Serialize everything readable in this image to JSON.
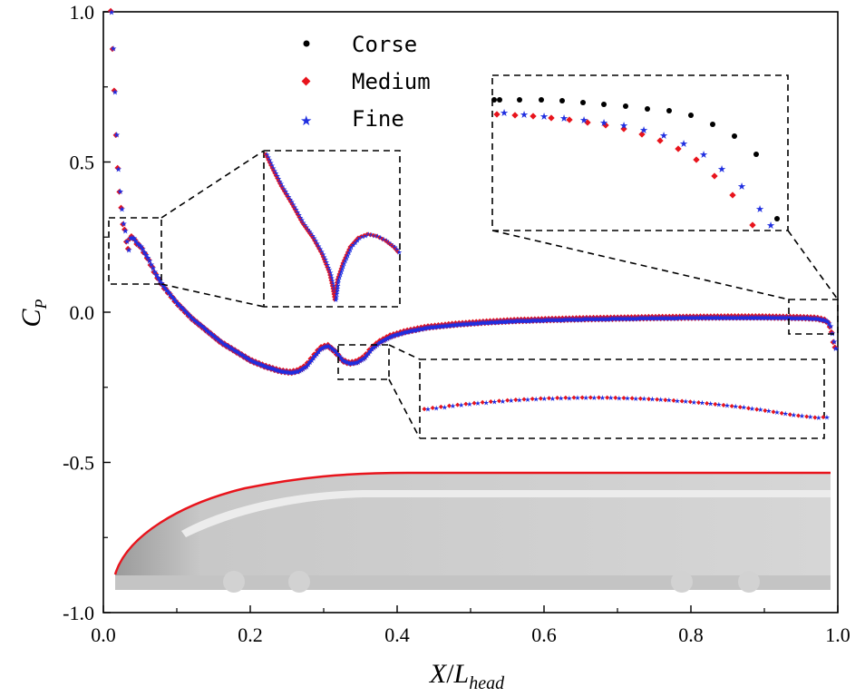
{
  "chart_data": {
    "type": "scatter",
    "title": "",
    "xlabel": "X/L_head",
    "xlabel_main": "X",
    "xlabel_sep": "/",
    "xlabel_base": "L",
    "xlabel_sub": "head",
    "ylabel": "C_P",
    "ylabel_base": "C",
    "ylabel_sub": "P",
    "xlim": [
      0.0,
      1.0
    ],
    "ylim": [
      -1.0,
      1.0
    ],
    "x_ticks": [
      "0.0",
      "0.2",
      "0.4",
      "0.6",
      "0.8",
      "1.0"
    ],
    "y_ticks": [
      "1.0",
      "0.5",
      "0.0",
      "-0.5",
      "-1.0"
    ],
    "legend_position": "top-center",
    "series": [
      {
        "name": "Corse",
        "color": "#000000",
        "marker": "circle"
      },
      {
        "name": "Medium",
        "color": "#e8141c",
        "marker": "diamond"
      },
      {
        "name": "Fine",
        "color": "#1f2ee0",
        "marker": "star"
      }
    ],
    "curve": {
      "x": [
        0.01,
        0.012,
        0.014,
        0.016,
        0.018,
        0.02,
        0.023,
        0.026,
        0.03,
        0.033,
        0.036,
        0.04,
        0.045,
        0.05,
        0.055,
        0.06,
        0.07,
        0.08,
        0.09,
        0.1,
        0.12,
        0.14,
        0.16,
        0.18,
        0.2,
        0.22,
        0.24,
        0.255,
        0.265,
        0.275,
        0.285,
        0.295,
        0.305,
        0.315,
        0.325,
        0.335,
        0.345,
        0.355,
        0.365,
        0.375,
        0.39,
        0.41,
        0.44,
        0.48,
        0.52,
        0.56,
        0.6,
        0.65,
        0.7,
        0.75,
        0.8,
        0.85,
        0.9,
        0.95,
        0.97,
        0.98,
        0.985,
        0.99,
        0.992,
        0.994,
        0.996
      ],
      "y": [
        1.0,
        0.9,
        0.78,
        0.65,
        0.54,
        0.45,
        0.37,
        0.3,
        0.26,
        0.2,
        0.25,
        0.25,
        0.23,
        0.22,
        0.2,
        0.18,
        0.13,
        0.09,
        0.06,
        0.03,
        -0.02,
        -0.06,
        -0.1,
        -0.13,
        -0.16,
        -0.18,
        -0.195,
        -0.2,
        -0.195,
        -0.18,
        -0.15,
        -0.12,
        -0.11,
        -0.13,
        -0.16,
        -0.17,
        -0.165,
        -0.15,
        -0.12,
        -0.1,
        -0.08,
        -0.065,
        -0.05,
        -0.04,
        -0.033,
        -0.028,
        -0.025,
        -0.022,
        -0.02,
        -0.018,
        -0.017,
        -0.016,
        -0.016,
        -0.018,
        -0.02,
        -0.025,
        -0.03,
        -0.05,
        -0.08,
        -0.1,
        -0.12
      ]
    }
  }
}
